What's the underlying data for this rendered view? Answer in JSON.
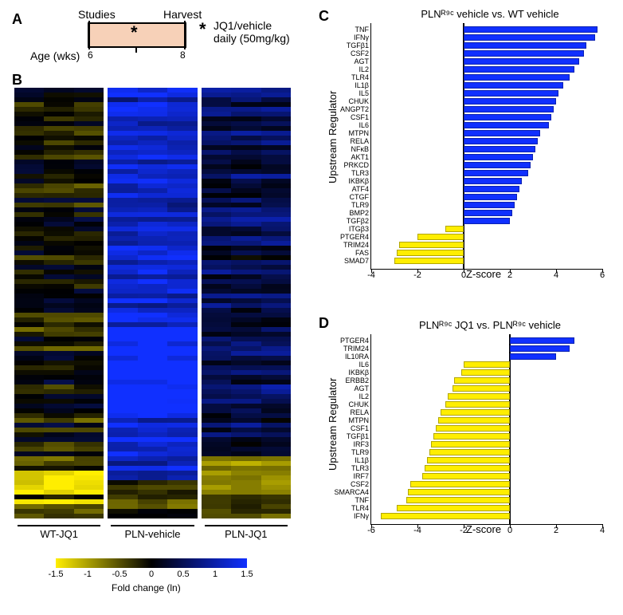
{
  "panelA": {
    "label": "A",
    "studies": "Studies",
    "harvest": "Harvest",
    "age": "Age (wks)",
    "age_start": "6",
    "age_end": "8",
    "star": "*",
    "treatment_line1": "JQ1/vehicle",
    "treatment_line2": "daily (50mg/kg)"
  },
  "panelB": {
    "label": "B",
    "groups": [
      {
        "label": "WT-JQ1",
        "cols": 3
      },
      {
        "label": "PLN-vehicle",
        "cols": 3
      },
      {
        "label": "PLN-JQ1",
        "cols": 3
      }
    ],
    "rows": 90,
    "colorbar": {
      "label": "Fold change (ln)",
      "ticks": [
        "-1.5",
        "-1",
        "-0.5",
        "0",
        "0.5",
        "1",
        "1.5"
      ],
      "min": -1.7,
      "max": 1.7,
      "color_neg": "#ffee00",
      "color_mid": "#000000",
      "color_pos": "#1030ff"
    }
  },
  "panelC": {
    "label": "C",
    "title": "PLNᴿ⁹ᶜ vehicle vs. WT vehicle",
    "ylabel": "Upstream Regulator",
    "xlabel": "Z-score",
    "xlim": [
      -4,
      6
    ],
    "xtick_step": 2,
    "color_pos": "#1030ff",
    "color_neg": "#ffee00",
    "bars": [
      {
        "label": "TNF",
        "value": 5.8
      },
      {
        "label": "IFNγ",
        "value": 5.7
      },
      {
        "label": "TGFβ1",
        "value": 5.3
      },
      {
        "label": "CSF2",
        "value": 5.2
      },
      {
        "label": "AGT",
        "value": 5.0
      },
      {
        "label": "IL2",
        "value": 4.8
      },
      {
        "label": "TLR4",
        "value": 4.6
      },
      {
        "label": "IL1β",
        "value": 4.3
      },
      {
        "label": "IL5",
        "value": 4.1
      },
      {
        "label": "CHUK",
        "value": 4.0
      },
      {
        "label": "ANGPT2",
        "value": 3.9
      },
      {
        "label": "CSF1",
        "value": 3.8
      },
      {
        "label": "IL6",
        "value": 3.7
      },
      {
        "label": "MTPN",
        "value": 3.3
      },
      {
        "label": "RELA",
        "value": 3.2
      },
      {
        "label": "NFκB",
        "value": 3.1
      },
      {
        "label": "AKT1",
        "value": 3.0
      },
      {
        "label": "PRKCD",
        "value": 2.9
      },
      {
        "label": "TLR3",
        "value": 2.8
      },
      {
        "label": "IKBKβ",
        "value": 2.5
      },
      {
        "label": "ATF4",
        "value": 2.4
      },
      {
        "label": "CTGF",
        "value": 2.3
      },
      {
        "label": "TLR9",
        "value": 2.2
      },
      {
        "label": "BMP2",
        "value": 2.1
      },
      {
        "label": "TGFβ2",
        "value": 2.0
      },
      {
        "label": "ITGβ3",
        "value": -0.8
      },
      {
        "label": "PTGER4",
        "value": -2.0
      },
      {
        "label": "TRIM24",
        "value": -2.8
      },
      {
        "label": "FAS",
        "value": -2.9
      },
      {
        "label": "SMAD7",
        "value": -3.0
      }
    ]
  },
  "panelD": {
    "label": "D",
    "title": "PLNᴿ⁹ᶜ JQ1 vs. PLNᴿ⁹ᶜ vehicle",
    "ylabel": "Upstream Regulator",
    "xlabel": "Z-score",
    "xlim": [
      -6,
      4
    ],
    "xtick_step": 2,
    "color_pos": "#1030ff",
    "color_neg": "#ffee00",
    "bars": [
      {
        "label": "PTGER4",
        "value": 2.8
      },
      {
        "label": "TRIM24",
        "value": 2.6
      },
      {
        "label": "IL10RA",
        "value": 2.0
      },
      {
        "label": "IL6",
        "value": -2.0
      },
      {
        "label": "IKBKβ",
        "value": -2.1
      },
      {
        "label": "ERBB2",
        "value": -2.4
      },
      {
        "label": "AGT",
        "value": -2.5
      },
      {
        "label": "IL2",
        "value": -2.7
      },
      {
        "label": "CHUK",
        "value": -2.8
      },
      {
        "label": "RELA",
        "value": -3.0
      },
      {
        "label": "MTPN",
        "value": -3.1
      },
      {
        "label": "CSF1",
        "value": -3.2
      },
      {
        "label": "TGFβ1",
        "value": -3.3
      },
      {
        "label": "IRF3",
        "value": -3.4
      },
      {
        "label": "TLR9",
        "value": -3.5
      },
      {
        "label": "IL1β",
        "value": -3.6
      },
      {
        "label": "TLR3",
        "value": -3.7
      },
      {
        "label": "IRF7",
        "value": -3.8
      },
      {
        "label": "CSF2",
        "value": -4.3
      },
      {
        "label": "SMARCA4",
        "value": -4.4
      },
      {
        "label": "TNF",
        "value": -4.5
      },
      {
        "label": "TLR4",
        "value": -4.9
      },
      {
        "label": "IFNγ",
        "value": -5.6
      }
    ]
  }
}
